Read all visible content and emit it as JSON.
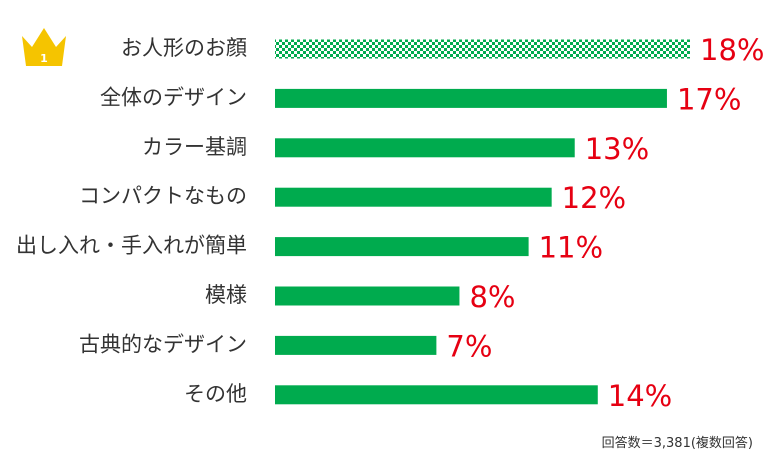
{
  "chart_data": {
    "type": "bar",
    "orientation": "horizontal",
    "categories": [
      "お人形のお顔",
      "全体のデザイン",
      "カラー基調",
      "コンパクトなもの",
      "出し入れ・手入れが簡単",
      "模様",
      "古典的なデザイン",
      "その他"
    ],
    "values": [
      18,
      17,
      13,
      12,
      11,
      8,
      7,
      14
    ],
    "value_labels": [
      "18%",
      "17%",
      "13%",
      "12%",
      "11%",
      "8%",
      "7%",
      "14%"
    ],
    "unit": "%",
    "xlim": [
      0,
      18
    ],
    "rank_badge": "1",
    "highlight_index": 0,
    "note": "回答数＝3,381(複数回答)",
    "colors": {
      "bar": "#00ab4e",
      "bar_pattern_alt": "#ffffff",
      "value_text": "#e60012",
      "label_text": "#333333",
      "crown": "#f5c400"
    }
  }
}
